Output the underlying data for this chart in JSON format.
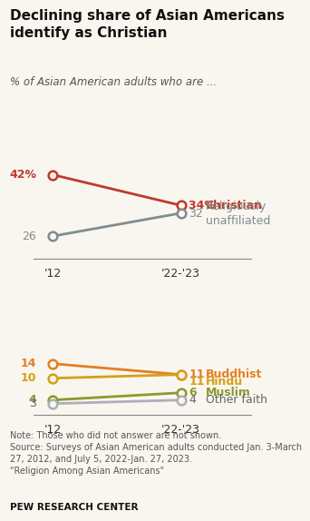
{
  "title": "Declining share of Asian Americans\nidentify as Christian",
  "subtitle": "% of Asian American adults who are ...",
  "x_labels": [
    "'12",
    "'22-'23"
  ],
  "x_positions": [
    0,
    1
  ],
  "series": [
    {
      "label": "Christian",
      "values": [
        42,
        34
      ],
      "color": "#c0392b",
      "label_end": "34% Christian",
      "label_start": "42%",
      "show_start_label": true
    },
    {
      "label": "Religiously unaffiliated",
      "values": [
        26,
        32
      ],
      "color": "#7f8c8d",
      "label_end": "32   Religiously\n        unaffiliated",
      "label_start": "26",
      "show_start_label": true
    },
    {
      "label": "Buddhist",
      "values": [
        14,
        11
      ],
      "color": "#e67e22",
      "label_end": "11  Buddhist",
      "label_start": "14",
      "show_start_label": true
    },
    {
      "label": "Hindu",
      "values": [
        10,
        11
      ],
      "color": "#d4a017",
      "label_end": "11  Hindu",
      "label_start": "10",
      "show_start_label": true
    },
    {
      "label": "Muslim",
      "values": [
        4,
        6
      ],
      "color": "#8a9a2e",
      "label_end": "6   Muslim",
      "label_start": "4",
      "show_start_label": true
    },
    {
      "label": "Other faith",
      "values": [
        3,
        4
      ],
      "color": "#aab0b5",
      "label_end": "4   Other faith",
      "label_start": "3",
      "show_start_label": true
    }
  ],
  "note": "Note: Those who did not answer are not shown.\nSource: Surveys of Asian American adults conducted Jan. 3-March\n27, 2012, and July 5, 2022-Jan. 27, 2023.\n\"Religion Among Asian Americans\"",
  "footer": "PEW RESEARCH CENTER",
  "background_color": "#f9f6f0"
}
